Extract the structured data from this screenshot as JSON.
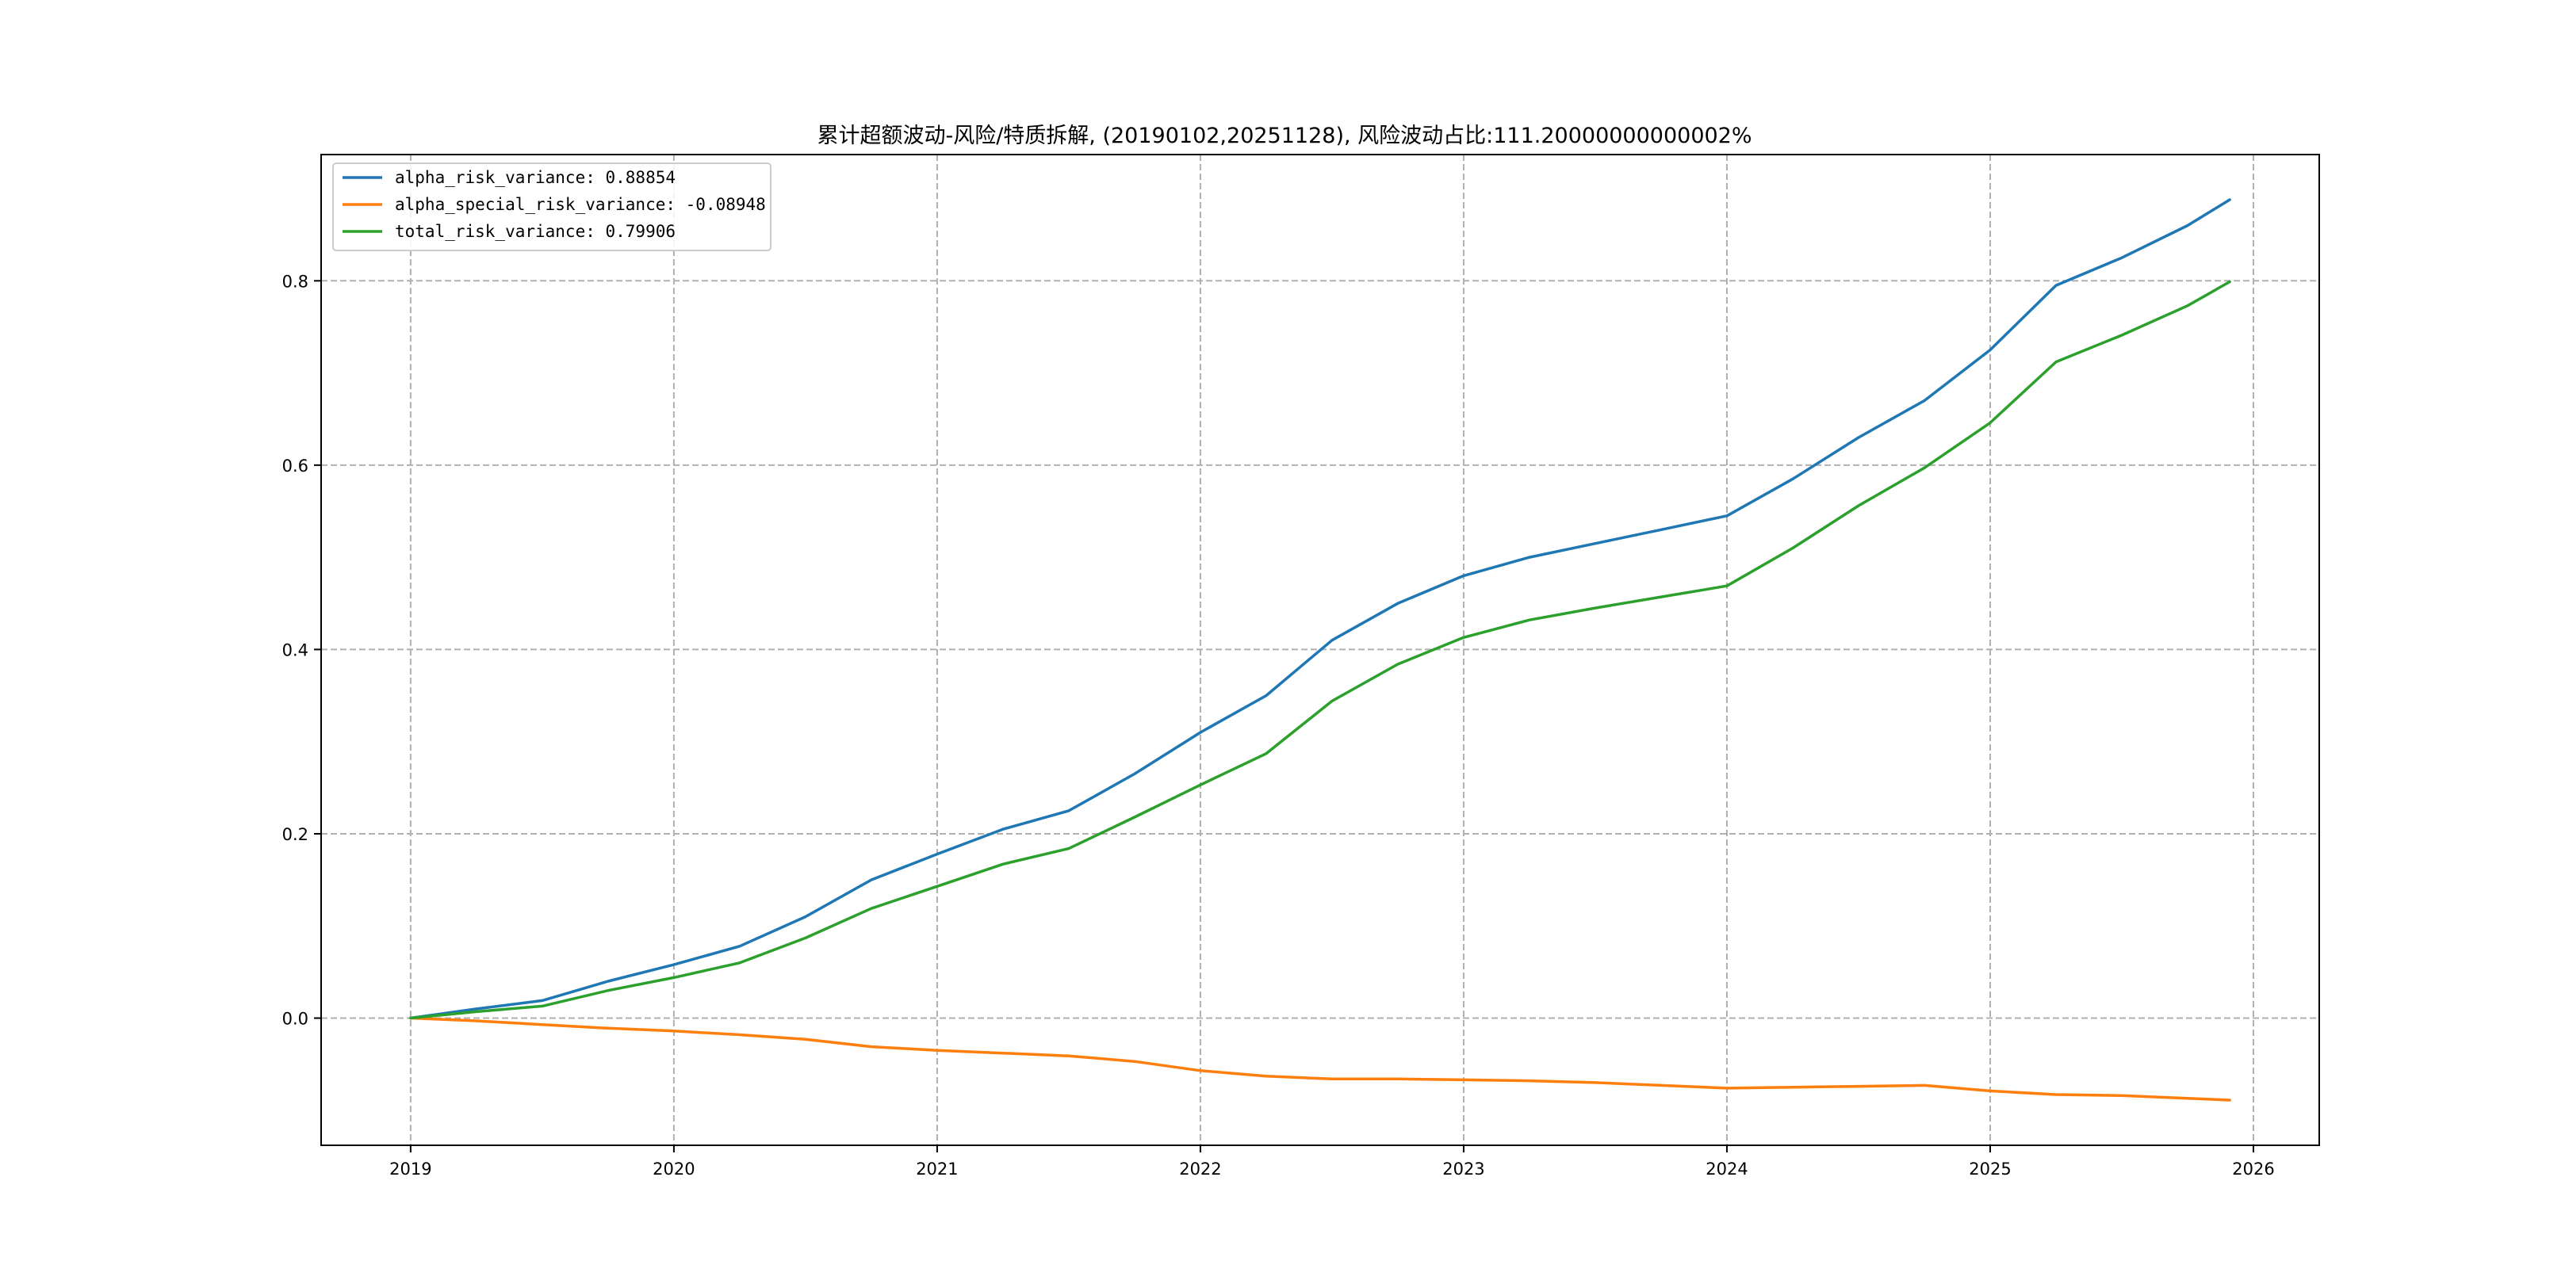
{
  "chart_data": {
    "type": "line",
    "title": "累计超额波动-风险/特质拆解, (20190102,20251128), 风险波动占比:111.20000000000002%",
    "xlabel": "",
    "ylabel": "",
    "xlim": [
      2018.66,
      2026.25
    ],
    "ylim": [
      -0.138,
      0.937
    ],
    "x_ticks": [
      2019,
      2020,
      2021,
      2022,
      2023,
      2024,
      2025,
      2026
    ],
    "x_tick_labels": [
      "2019",
      "2020",
      "2021",
      "2022",
      "2023",
      "2024",
      "2025",
      "2026"
    ],
    "y_ticks": [
      0.0,
      0.2,
      0.4,
      0.6,
      0.8
    ],
    "y_tick_labels": [
      "0.0",
      "0.2",
      "0.4",
      "0.6",
      "0.8"
    ],
    "grid": true,
    "legend_position": "top-left",
    "legend_labels": [
      "alpha_risk_variance: 0.88854",
      "alpha_special_risk_variance: -0.08948",
      "total_risk_variance: 0.79906"
    ],
    "series": [
      {
        "name": "alpha_risk_variance",
        "color": "#1f77b4",
        "x": [
          2019.0,
          2019.25,
          2019.5,
          2019.75,
          2020.0,
          2020.25,
          2020.5,
          2020.75,
          2021.0,
          2021.25,
          2021.5,
          2021.75,
          2022.0,
          2022.25,
          2022.5,
          2022.75,
          2023.0,
          2023.25,
          2023.5,
          2023.75,
          2024.0,
          2024.25,
          2024.5,
          2024.75,
          2025.0,
          2025.25,
          2025.5,
          2025.75,
          2025.91
        ],
        "values": [
          0.0,
          0.01,
          0.019,
          0.04,
          0.058,
          0.078,
          0.11,
          0.15,
          0.178,
          0.205,
          0.225,
          0.265,
          0.31,
          0.35,
          0.41,
          0.45,
          0.48,
          0.5,
          0.515,
          0.53,
          0.545,
          0.585,
          0.63,
          0.67,
          0.725,
          0.795,
          0.825,
          0.86,
          0.888
        ]
      },
      {
        "name": "alpha_special_risk_variance",
        "color": "#ff7f0e",
        "x": [
          2019.0,
          2019.25,
          2019.5,
          2019.75,
          2020.0,
          2020.25,
          2020.5,
          2020.75,
          2021.0,
          2021.25,
          2021.5,
          2021.75,
          2022.0,
          2022.25,
          2022.5,
          2022.75,
          2023.0,
          2023.25,
          2023.5,
          2023.75,
          2024.0,
          2024.25,
          2024.5,
          2024.75,
          2025.0,
          2025.25,
          2025.5,
          2025.75,
          2025.91
        ],
        "values": [
          0.0,
          -0.003,
          -0.007,
          -0.011,
          -0.014,
          -0.018,
          -0.023,
          -0.031,
          -0.035,
          -0.038,
          -0.041,
          -0.047,
          -0.057,
          -0.063,
          -0.066,
          -0.066,
          -0.067,
          -0.068,
          -0.07,
          -0.073,
          -0.076,
          -0.075,
          -0.074,
          -0.073,
          -0.079,
          -0.083,
          -0.084,
          -0.087,
          -0.089
        ]
      },
      {
        "name": "total_risk_variance",
        "color": "#2ca02c",
        "x": [
          2019.0,
          2019.25,
          2019.5,
          2019.75,
          2020.0,
          2020.25,
          2020.5,
          2020.75,
          2021.0,
          2021.25,
          2021.5,
          2021.75,
          2022.0,
          2022.25,
          2022.5,
          2022.75,
          2023.0,
          2023.25,
          2023.5,
          2023.75,
          2024.0,
          2024.25,
          2024.5,
          2024.75,
          2025.0,
          2025.25,
          2025.5,
          2025.75,
          2025.91
        ],
        "values": [
          0.0,
          0.007,
          0.013,
          0.03,
          0.044,
          0.06,
          0.087,
          0.119,
          0.143,
          0.167,
          0.184,
          0.218,
          0.253,
          0.287,
          0.344,
          0.384,
          0.413,
          0.432,
          0.445,
          0.457,
          0.469,
          0.51,
          0.556,
          0.597,
          0.646,
          0.712,
          0.741,
          0.773,
          0.799
        ]
      }
    ]
  }
}
